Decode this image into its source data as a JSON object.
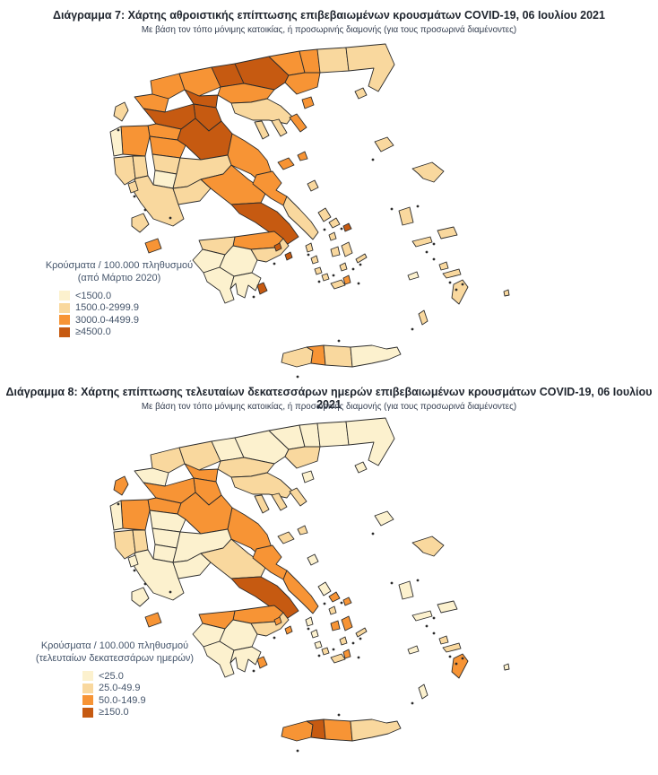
{
  "colors": {
    "c1": "#FCF1CE",
    "c2": "#F9D89E",
    "c3": "#F79435",
    "c4": "#C65A11",
    "border": "#2b2b2b"
  },
  "chart_data": [
    {
      "type": "heatmap",
      "subtype": "choropleth-map",
      "geography": "Greece, regional units",
      "title": "Διάγραμμα 7: Χάρτης αθροιστικής επίπτωσης επιβεβαιωμένων κρουσμάτων COVID-19, 06 Ιουλίου 2021",
      "subtitle": "Με βάση τον τόπο μόνιμης κατοικίας, ή προσωρινής διαμονής (για τους προσωρινά διαμένοντες)",
      "legend_title_line1": "Κρούσματα / 100.000 πληθυσμού",
      "legend_title_line2": "(από Μάρτιο 2020)",
      "bins": [
        {
          "label": "<1500.0",
          "color_key": "c1"
        },
        {
          "label": "1500.0-2999.9",
          "color_key": "c2"
        },
        {
          "label": "3000.0-4499.9",
          "color_key": "c3"
        },
        {
          "label": "≥4500.0",
          "color_key": "c4"
        }
      ],
      "regions": {
        "florina": "c3",
        "pella": "c3",
        "kilkis": "c4",
        "serres": "c4",
        "drama": "c3",
        "xanthi": "c3",
        "rodopi": "c2",
        "evros": "c2",
        "kavala": "c3",
        "thasos": "c3",
        "samothrace": "c2",
        "thessaloniki": "c3",
        "chalkidiki": "c2",
        "kassandra": "c2",
        "sithonia": "c2",
        "athos": "c3",
        "imathia": "c4",
        "pieria": "c4",
        "kastoria": "c3",
        "kozani": "c4",
        "grevena": "c3",
        "ioannina": "c3",
        "thesprotia": "c1",
        "preveza": "c2",
        "arta": "c2",
        "trikala": "c3",
        "larissa": "c4",
        "magnesia": "c3",
        "sporades": "c3",
        "karditsa": "c2",
        "evrytania": "c1",
        "aitoloakarnania": "c2",
        "fthiotida": "c2",
        "fokida": "c2",
        "boeotia": "c3",
        "attica": "c4",
        "evia_north": "c3",
        "evia_south": "c2",
        "skyros": "c2",
        "corinthia": "c3",
        "achaia": "c2",
        "ilia": "c1",
        "arcadia": "c1",
        "argolida": "c2",
        "messinia": "c1",
        "laconia": "c1",
        "saronic": "c4",
        "kythira": "c4",
        "corfu": "c2",
        "lefkada": "c2",
        "kefalonia": "c2",
        "zakynthos": "c3",
        "limnos": "c2",
        "lesbos": "c2",
        "chios": "c2",
        "samos": "c2",
        "ikaria": "c2",
        "andros": "c2",
        "tinos": "c2",
        "mykonos": "c4",
        "syros": "c2",
        "kea": "c2",
        "kythnos": "c2",
        "serifos": "c2",
        "sifnos": "c2",
        "paros": "c2",
        "naxos": "c2",
        "ios": "c2",
        "milos": "c2",
        "santorini": "c3",
        "amorgos": "c2",
        "astypalaia": "c1",
        "kalymnos": "c2",
        "kos": "c2",
        "rhodes": "c2",
        "karpathos": "c2",
        "kastellorizo": "c2",
        "chania": "c2",
        "rethymno": "c3",
        "heraklion": "c2",
        "lasithi": "c1"
      }
    },
    {
      "type": "heatmap",
      "subtype": "choropleth-map",
      "geography": "Greece, regional units",
      "title": "Διάγραμμα 8: Χάρτης επίπτωσης τελευταίων δεκατεσσάρων ημερών επιβεβαιωμένων κρουσμάτων COVID-19, 06 Ιουλίου 2021",
      "subtitle": "Με βάση τον τόπο μόνιμης κατοικίας, ή προσωρινής διαμονής (για τους προσωρινά διαμένοντες)",
      "legend_title_line1": "Κρούσματα / 100.000 πληθυσμού",
      "legend_title_line2": "(τελευταίων δεκατεσσάρων ημερών)",
      "bins": [
        {
          "label": "<25.0",
          "color_key": "c1"
        },
        {
          "label": "25.0-49.9",
          "color_key": "c2"
        },
        {
          "label": "50.0-149.9",
          "color_key": "c3"
        },
        {
          "label": "≥150.0",
          "color_key": "c4"
        }
      ],
      "regions": {
        "florina": "c2",
        "pella": "c2",
        "kilkis": "c1",
        "serres": "c1",
        "drama": "c1",
        "xanthi": "c1",
        "rodopi": "c1",
        "evros": "c1",
        "kavala": "c2",
        "thasos": "c1",
        "samothrace": "c1",
        "thessaloniki": "c2",
        "chalkidiki": "c2",
        "kassandra": "c2",
        "sithonia": "c2",
        "athos": "c2",
        "imathia": "c3",
        "pieria": "c3",
        "kastoria": "c1",
        "kozani": "c3",
        "grevena": "c3",
        "ioannina": "c3",
        "thesprotia": "c1",
        "preveza": "c2",
        "arta": "c2",
        "trikala": "c1",
        "larissa": "c3",
        "magnesia": "c3",
        "sporades": "c2",
        "karditsa": "c1",
        "evrytania": "c1",
        "aitoloakarnania": "c1",
        "fthiotida": "c1",
        "fokida": "c1",
        "boeotia": "c2",
        "attica": "c4",
        "evia_north": "c3",
        "evia_south": "c3",
        "skyros": "c1",
        "corinthia": "c3",
        "achaia": "c3",
        "ilia": "c1",
        "arcadia": "c1",
        "argolida": "c2",
        "messinia": "c1",
        "laconia": "c1",
        "saronic": "c3",
        "kythira": "c3",
        "corfu": "c3",
        "lefkada": "c1",
        "kefalonia": "c1",
        "zakynthos": "c3",
        "limnos": "c1",
        "lesbos": "c2",
        "chios": "c1",
        "samos": "c1",
        "ikaria": "c1",
        "andros": "c1",
        "tinos": "c3",
        "mykonos": "c3",
        "syros": "c2",
        "kea": "c1",
        "kythnos": "c1",
        "serifos": "c1",
        "sifnos": "c2",
        "paros": "c3",
        "naxos": "c3",
        "ios": "c2",
        "milos": "c2",
        "santorini": "c3",
        "amorgos": "c2",
        "astypalaia": "c1",
        "kalymnos": "c2",
        "kos": "c2",
        "rhodes": "c3",
        "karpathos": "c1",
        "kastellorizo": "c1",
        "chania": "c3",
        "rethymno": "c4",
        "heraklion": "c3",
        "lasithi": "c2"
      }
    }
  ]
}
